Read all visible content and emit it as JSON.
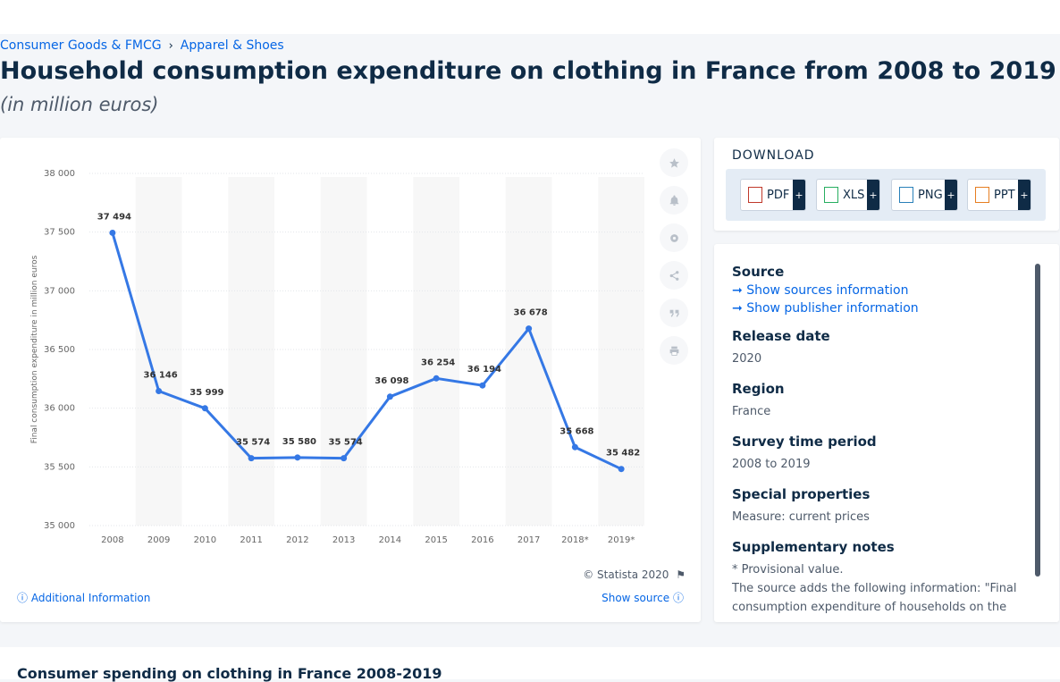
{
  "breadcrumb": {
    "item1": "Consumer Goods & FMCG",
    "sep": "›",
    "item2": "Apparel & Shoes"
  },
  "page_title": "Household consumption expenditure on clothing in France from 2008 to 2019",
  "page_subtitle": "(in million euros)",
  "chart_data": {
    "type": "line",
    "categories": [
      "2008",
      "2009",
      "2010",
      "2011",
      "2012",
      "2013",
      "2014",
      "2015",
      "2016",
      "2017",
      "2018*",
      "2019*"
    ],
    "values": [
      37494,
      36146,
      35999,
      35574,
      35580,
      35574,
      36098,
      36254,
      36194,
      36678,
      35668,
      35482
    ],
    "data_labels": [
      "37 494",
      "36 146",
      "35 999",
      "35 574",
      "35 580",
      "35 574",
      "36 098",
      "36 254",
      "36 194",
      "36 678",
      "35 668",
      "35 482"
    ],
    "ylabel": "Final consumption expenditure in million euros",
    "ylim": [
      35000,
      38000
    ],
    "yticks": [
      35000,
      35500,
      36000,
      36500,
      37000,
      37500,
      38000
    ],
    "ytick_labels": [
      "35 000",
      "35 500",
      "36 000",
      "36 500",
      "37 000",
      "37 500",
      "38 000"
    ],
    "grid": true,
    "line_color": "#3578e5"
  },
  "chart_footer": {
    "credit": "© Statista 2020",
    "additional_info": "Additional Information",
    "show_source": "Show source"
  },
  "tools": [
    "star-icon",
    "bell-icon",
    "gear-icon",
    "share-icon",
    "quote-icon",
    "print-icon"
  ],
  "download": {
    "heading": "DOWNLOAD",
    "buttons": [
      {
        "label": "PDF",
        "plus": "+"
      },
      {
        "label": "XLS",
        "plus": "+"
      },
      {
        "label": "PNG",
        "plus": "+"
      },
      {
        "label": "PPT",
        "plus": "+"
      }
    ]
  },
  "info": {
    "source_label": "Source",
    "sources_link": "Show sources information",
    "publisher_link": "Show publisher information",
    "release_label": "Release date",
    "release_value": "2020",
    "region_label": "Region",
    "region_value": "France",
    "period_label": "Survey time period",
    "period_value": "2008 to 2019",
    "special_label": "Special properties",
    "special_value": "Measure: current prices",
    "notes_label": "Supplementary notes",
    "notes_line1": "* Provisional value.",
    "notes_line2": "The source adds the following information: \"Final consumption expenditure of households on the"
  },
  "bottom_title": "Consumer spending on clothing in France 2008-2019"
}
